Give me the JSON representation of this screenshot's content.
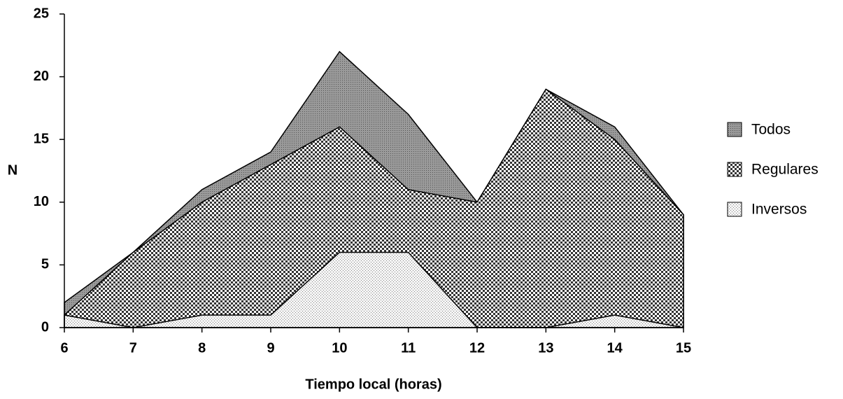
{
  "chart_data": {
    "type": "area",
    "x": [
      6,
      7,
      8,
      9,
      10,
      11,
      12,
      13,
      14,
      15
    ],
    "xlim": [
      6,
      15
    ],
    "xticks": [
      6,
      7,
      8,
      9,
      10,
      11,
      12,
      13,
      14,
      15
    ],
    "ylim": [
      0,
      25
    ],
    "yticks": [
      0,
      5,
      10,
      15,
      20,
      25
    ],
    "xlabel": "Tiempo local (horas)",
    "ylabel": "N",
    "legend": "right",
    "series": [
      {
        "name": "Todos",
        "color": "#8a8a8a",
        "values": [
          2,
          6,
          11,
          14,
          22,
          17,
          10,
          19,
          16,
          9
        ]
      },
      {
        "name": "Regulares",
        "color": "#333333",
        "values": [
          1,
          6,
          10,
          13,
          16,
          11,
          10,
          19,
          15,
          9
        ]
      },
      {
        "name": "Inversos",
        "color": "#bbbbbb",
        "values": [
          1,
          0,
          1,
          1,
          6,
          6,
          0,
          0,
          1,
          0
        ]
      }
    ]
  }
}
